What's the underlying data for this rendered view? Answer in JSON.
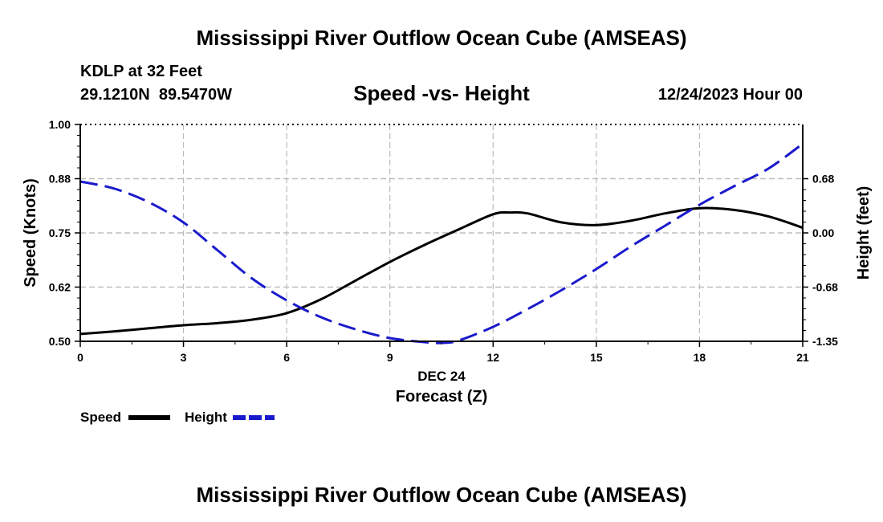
{
  "chart_data": {
    "type": "line",
    "title": "Mississippi River Outflow Ocean Cube (AMSEAS)",
    "footer_title": "Mississippi River Outflow Ocean Cube (AMSEAS)",
    "station": "KDLP at 32 Feet",
    "location": "29.1210N  89.5470W",
    "subtitle": "Speed -vs- Height",
    "datetime": "12/24/2023 Hour 00",
    "xlabel": "Forecast (Z)",
    "xlabel_date": "DEC 24",
    "ylabel_left": "Speed (Knots)",
    "ylabel_right": "Height (feet)",
    "x_ticks": [
      0,
      3,
      6,
      9,
      12,
      15,
      18,
      21
    ],
    "x_tick_labels": [
      "0",
      "3",
      "6",
      "9",
      "12",
      "15",
      "18",
      "21"
    ],
    "xlim": [
      0,
      21
    ],
    "y_left_ticks": [
      0.5,
      0.625,
      0.75,
      0.875,
      1.0
    ],
    "y_left_tick_labels": [
      "0.50",
      "0.62",
      "0.75",
      "0.88",
      "1.00"
    ],
    "ylim_left": [
      0.5,
      1.0
    ],
    "y_right_ticks": [
      -1.35,
      -0.675,
      0.0,
      0.675
    ],
    "y_right_tick_labels": [
      "-1.35",
      "-0.68",
      "0.00",
      "0.68"
    ],
    "ylim_right": [
      -1.35,
      1.35
    ],
    "grid": true,
    "legend_position": "bottom-left",
    "series": [
      {
        "name": "Speed",
        "axis": "left",
        "color": "#000000",
        "style": "solid",
        "x": [
          0,
          1,
          2,
          3,
          4,
          5,
          6,
          7,
          8,
          9,
          10,
          11,
          12,
          12.5,
          13,
          14,
          15,
          16,
          17,
          18,
          19,
          20,
          21
        ],
        "values": [
          0.517,
          0.523,
          0.53,
          0.537,
          0.542,
          0.55,
          0.565,
          0.597,
          0.64,
          0.683,
          0.722,
          0.758,
          0.793,
          0.797,
          0.795,
          0.774,
          0.768,
          0.778,
          0.795,
          0.807,
          0.803,
          0.788,
          0.762
        ]
      },
      {
        "name": "Height",
        "axis": "right",
        "color": "#1a1acd",
        "style": "dashed",
        "x": [
          0,
          1,
          2,
          3,
          4,
          5,
          6,
          7,
          8,
          9,
          10,
          10.5,
          11,
          12,
          13,
          14,
          15,
          16,
          17,
          18,
          19,
          20,
          21
        ],
        "values": [
          0.64,
          0.55,
          0.38,
          0.13,
          -0.22,
          -0.57,
          -0.84,
          -1.05,
          -1.2,
          -1.31,
          -1.36,
          -1.37,
          -1.34,
          -1.17,
          -0.95,
          -0.71,
          -0.45,
          -0.17,
          0.09,
          0.35,
          0.58,
          0.8,
          1.11
        ]
      }
    ]
  }
}
